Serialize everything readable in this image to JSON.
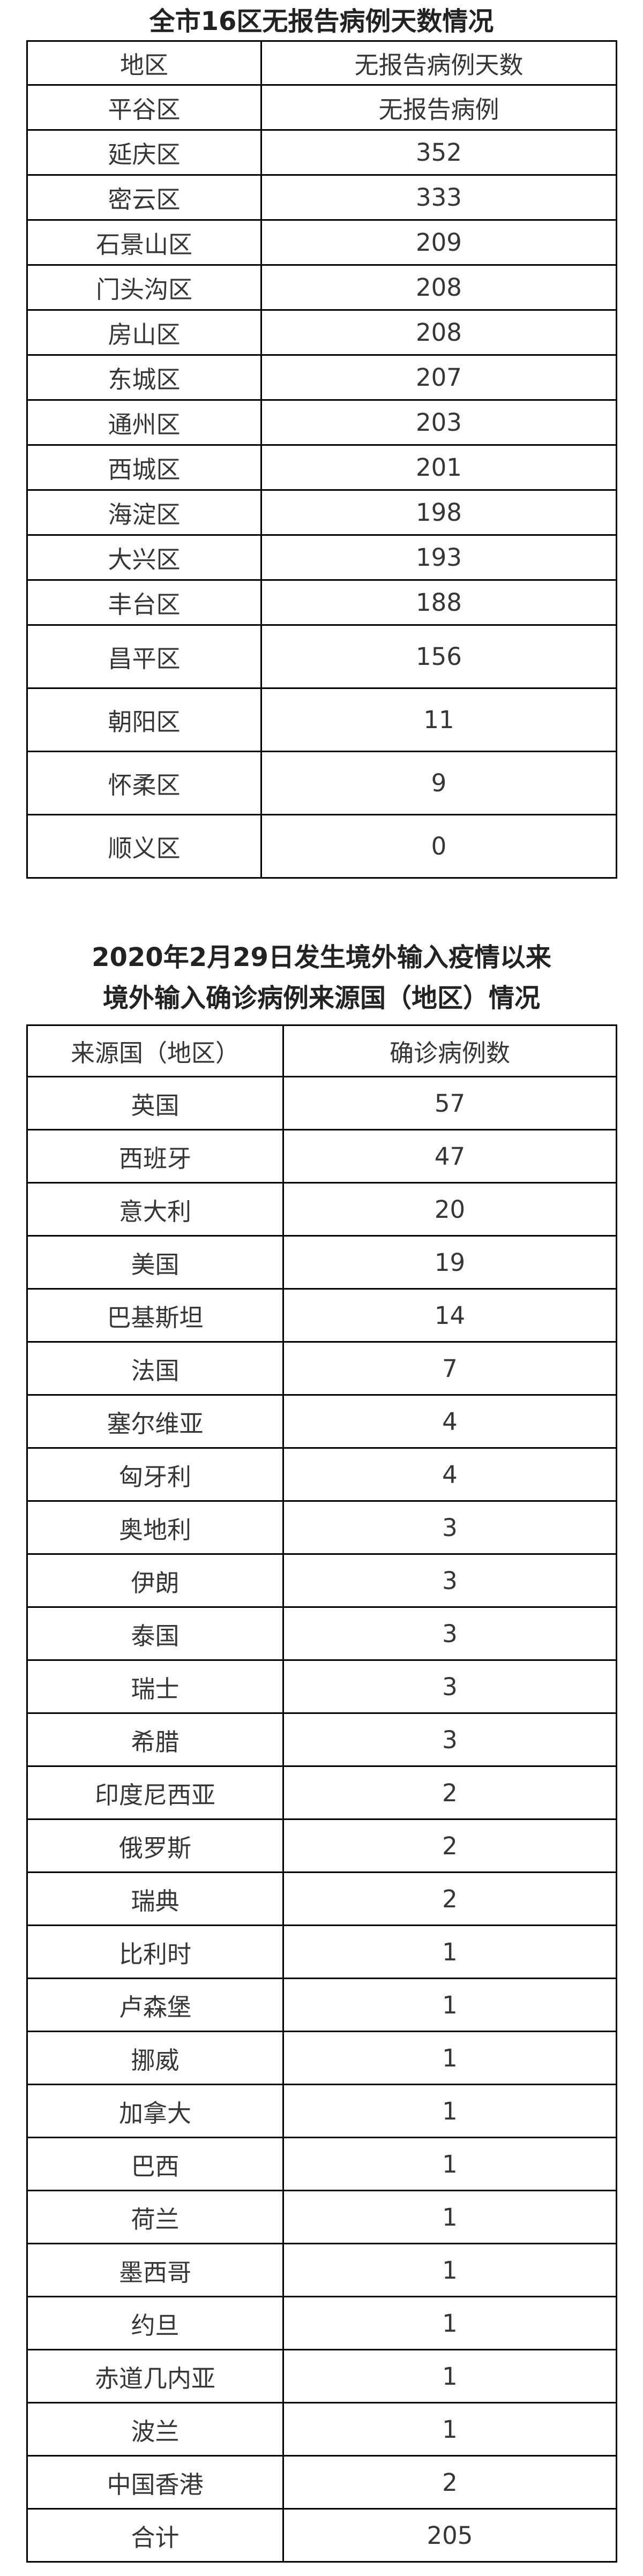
{
  "page": {
    "background": "#ffffff",
    "border_color": "#000000",
    "text_color": "#363636"
  },
  "table1": {
    "title": "全市16区无报告病例天数情况",
    "columns": [
      "地区",
      "无报告病例天数"
    ],
    "rows": [
      {
        "region": "平谷区",
        "days": "无报告病例"
      },
      {
        "region": "延庆区",
        "days": "352"
      },
      {
        "region": "密云区",
        "days": "333"
      },
      {
        "region": "石景山区",
        "days": "209"
      },
      {
        "region": "门头沟区",
        "days": "208"
      },
      {
        "region": "房山区",
        "days": "208"
      },
      {
        "region": "东城区",
        "days": "207"
      },
      {
        "region": "通州区",
        "days": "203"
      },
      {
        "region": "西城区",
        "days": "201"
      },
      {
        "region": "海淀区",
        "days": "198"
      },
      {
        "region": "大兴区",
        "days": "193"
      },
      {
        "region": "丰台区",
        "days": "188"
      },
      {
        "region": "昌平区",
        "days": "156"
      },
      {
        "region": "朝阳区",
        "days": "11"
      },
      {
        "region": "怀柔区",
        "days": "9"
      },
      {
        "region": "顺义区",
        "days": "0"
      }
    ]
  },
  "table2": {
    "title_line1": "2020年2月29日发生境外输入疫情以来",
    "title_line2": "境外输入确诊病例来源国（地区）情况",
    "columns": [
      "来源国（地区）",
      "确诊病例数"
    ],
    "rows": [
      {
        "origin": "英国",
        "cases": "57"
      },
      {
        "origin": "西班牙",
        "cases": "47"
      },
      {
        "origin": "意大利",
        "cases": "20"
      },
      {
        "origin": "美国",
        "cases": "19"
      },
      {
        "origin": "巴基斯坦",
        "cases": "14"
      },
      {
        "origin": "法国",
        "cases": "7"
      },
      {
        "origin": "塞尔维亚",
        "cases": "4"
      },
      {
        "origin": "匈牙利",
        "cases": "4"
      },
      {
        "origin": "奥地利",
        "cases": "3"
      },
      {
        "origin": "伊朗",
        "cases": "3"
      },
      {
        "origin": "泰国",
        "cases": "3"
      },
      {
        "origin": "瑞士",
        "cases": "3"
      },
      {
        "origin": "希腊",
        "cases": "3"
      },
      {
        "origin": "印度尼西亚",
        "cases": "2"
      },
      {
        "origin": "俄罗斯",
        "cases": "2"
      },
      {
        "origin": "瑞典",
        "cases": "2"
      },
      {
        "origin": "比利时",
        "cases": "1"
      },
      {
        "origin": "卢森堡",
        "cases": "1"
      },
      {
        "origin": "挪威",
        "cases": "1"
      },
      {
        "origin": "加拿大",
        "cases": "1"
      },
      {
        "origin": "巴西",
        "cases": "1"
      },
      {
        "origin": "荷兰",
        "cases": "1"
      },
      {
        "origin": "墨西哥",
        "cases": "1"
      },
      {
        "origin": "约旦",
        "cases": "1"
      },
      {
        "origin": "赤道几内亚",
        "cases": "1"
      },
      {
        "origin": "波兰",
        "cases": "1"
      },
      {
        "origin": "中国香港",
        "cases": "2"
      },
      {
        "origin": "合计",
        "cases": "205"
      }
    ]
  }
}
